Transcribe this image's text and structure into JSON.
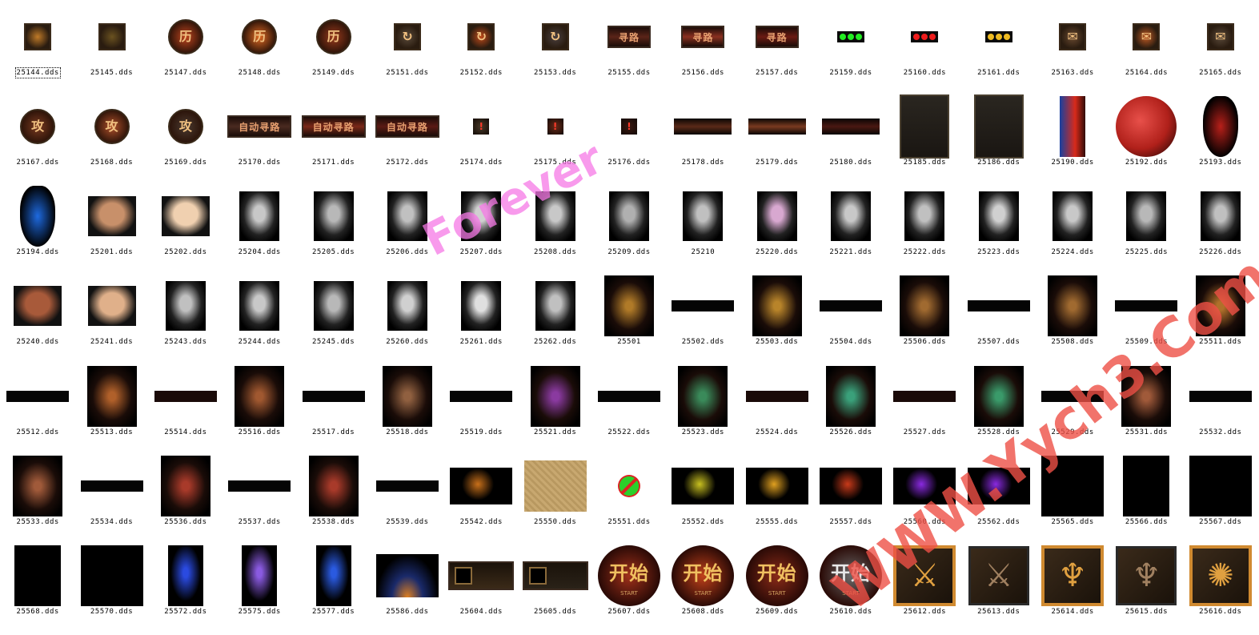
{
  "watermarks": {
    "forever": "Forever",
    "url": "WWW.Yych3.Com"
  },
  "files": [
    {
      "name": "25144.dds",
      "kind": "iconsq",
      "color": "#c07a28",
      "selected": true
    },
    {
      "name": "25145.dds",
      "kind": "iconsq",
      "color": "#6a5220"
    },
    {
      "name": "25147.dds",
      "kind": "iconround",
      "color": "#c0451e",
      "glyph": "历"
    },
    {
      "name": "25148.dds",
      "kind": "iconround",
      "color": "#e06a22",
      "glyph": "历"
    },
    {
      "name": "25149.dds",
      "kind": "iconround",
      "color": "#9a3a1c",
      "glyph": "历"
    },
    {
      "name": "25151.dds",
      "kind": "iconsq",
      "color": "#5a4a3a",
      "glyph": "↻"
    },
    {
      "name": "25152.dds",
      "kind": "iconsq",
      "color": "#c04a1a",
      "glyph": "↻"
    },
    {
      "name": "25153.dds",
      "kind": "iconsq",
      "color": "#4a4040",
      "glyph": "↻"
    },
    {
      "name": "25155.dds",
      "kind": "plate",
      "color": "#5a2418",
      "text": "寻路"
    },
    {
      "name": "25156.dds",
      "kind": "plate",
      "color": "#8a3020",
      "text": "寻路"
    },
    {
      "name": "25157.dds",
      "kind": "plate",
      "color": "#6a1a12",
      "text": "寻路"
    },
    {
      "name": "25159.dds",
      "kind": "dots",
      "color": "#22ee22"
    },
    {
      "name": "25160.dds",
      "kind": "dots",
      "color": "#ee1c1c"
    },
    {
      "name": "25161.dds",
      "kind": "dots",
      "color": "#eebb22"
    },
    {
      "name": "25163.dds",
      "kind": "iconsq",
      "color": "#6a4a30",
      "glyph": "✉"
    },
    {
      "name": "25164.dds",
      "kind": "iconsq",
      "color": "#c05a24",
      "glyph": "✉"
    },
    {
      "name": "25165.dds",
      "kind": "iconsq",
      "color": "#5a4a3a",
      "glyph": "✉"
    },
    {
      "name": "25167.dds",
      "kind": "iconround",
      "color": "#7a3a20",
      "glyph": "攻"
    },
    {
      "name": "25168.dds",
      "kind": "iconround",
      "color": "#b0502a",
      "glyph": "攻"
    },
    {
      "name": "25169.dds",
      "kind": "iconround",
      "color": "#4a3a30",
      "glyph": "攻"
    },
    {
      "name": "25170.dds",
      "kind": "longplate",
      "color": "#4a2a20",
      "text": "自动寻路"
    },
    {
      "name": "25171.dds",
      "kind": "longplate",
      "color": "#7a2818",
      "text": "自动寻路"
    },
    {
      "name": "25172.dds",
      "kind": "longplate",
      "color": "#5a1a14",
      "text": "自动寻路"
    },
    {
      "name": "25174.dds",
      "kind": "small",
      "color": "#4a3a28",
      "glyph": "!"
    },
    {
      "name": "25175.dds",
      "kind": "small",
      "color": "#6a2a18",
      "glyph": "!"
    },
    {
      "name": "25176.dds",
      "kind": "small",
      "color": "#3a1810",
      "glyph": "!"
    },
    {
      "name": "25178.dds",
      "kind": "bar",
      "color": "#5a2a18"
    },
    {
      "name": "25179.dds",
      "kind": "bar",
      "color": "#7a3a20"
    },
    {
      "name": "25180.dds",
      "kind": "bar",
      "color": "#4a1812"
    },
    {
      "name": "25185.dds",
      "kind": "panel",
      "color": "#1a1612"
    },
    {
      "name": "25186.dds",
      "kind": "panel2",
      "color": "#1a1612"
    },
    {
      "name": "25190.dds",
      "kind": "orbtall",
      "color": "#d82a1a"
    },
    {
      "name": "25192.dds",
      "kind": "orb",
      "color": "#b0201a"
    },
    {
      "name": "25193.dds",
      "kind": "flame",
      "color": "#b8201a"
    },
    {
      "name": "25194.dds",
      "kind": "flame",
      "color": "#1e6ae0"
    },
    {
      "name": "25201.dds",
      "kind": "face",
      "color": "#c8906a"
    },
    {
      "name": "25202.dds",
      "kind": "face",
      "color": "#f0d0b0"
    },
    {
      "name": "25204.dds",
      "kind": "hair",
      "color": "#c8c8c8"
    },
    {
      "name": "25205.dds",
      "kind": "hair",
      "color": "#b8b8b8"
    },
    {
      "name": "25206.dds",
      "kind": "hair",
      "color": "#c0c0c0"
    },
    {
      "name": "25207.dds",
      "kind": "hair",
      "color": "#d0d0d0"
    },
    {
      "name": "25208.dds",
      "kind": "hair",
      "color": "#c8c8c8"
    },
    {
      "name": "25209.dds",
      "kind": "hair",
      "color": "#b0b0b0"
    },
    {
      "name": "25210",
      "kind": "hair",
      "color": "#c0c0c0"
    },
    {
      "name": "25220.dds",
      "kind": "hair",
      "color": "#d8a8d0"
    },
    {
      "name": "25221.dds",
      "kind": "hair",
      "color": "#c8c8c8"
    },
    {
      "name": "25222.dds",
      "kind": "hair",
      "color": "#c0c0c0"
    },
    {
      "name": "25223.dds",
      "kind": "hair",
      "color": "#d0d0d0"
    },
    {
      "name": "25224.dds",
      "kind": "hair",
      "color": "#c8c8c8"
    },
    {
      "name": "25225.dds",
      "kind": "hair",
      "color": "#b8b8b8"
    },
    {
      "name": "25226.dds",
      "kind": "hair",
      "color": "#c0c0c0"
    },
    {
      "name": "25240.dds",
      "kind": "face",
      "color": "#a85a3a"
    },
    {
      "name": "25241.dds",
      "kind": "face",
      "color": "#e0b08a"
    },
    {
      "name": "25243.dds",
      "kind": "hair",
      "color": "#c0c0c0"
    },
    {
      "name": "25244.dds",
      "kind": "hair",
      "color": "#c8c8c8"
    },
    {
      "name": "25245.dds",
      "kind": "hair",
      "color": "#b8b8b8"
    },
    {
      "name": "25260.dds",
      "kind": "hair",
      "color": "#d0d0d0"
    },
    {
      "name": "25261.dds",
      "kind": "hair",
      "color": "#e0e0e0"
    },
    {
      "name": "25262.dds",
      "kind": "hair",
      "color": "#c0c0c0"
    },
    {
      "name": "25501",
      "kind": "warrior",
      "color": "#b07a28"
    },
    {
      "name": "25502.dds",
      "kind": "strip",
      "color": "#050505"
    },
    {
      "name": "25503.dds",
      "kind": "warrior",
      "color": "#b8842a"
    },
    {
      "name": "25504.dds",
      "kind": "strip",
      "color": "#050505"
    },
    {
      "name": "25506.dds",
      "kind": "warrior",
      "color": "#a06a30"
    },
    {
      "name": "25507.dds",
      "kind": "strip",
      "color": "#050505"
    },
    {
      "name": "25508.dds",
      "kind": "warrior",
      "color": "#a06a30"
    },
    {
      "name": "25509.dds",
      "kind": "strip",
      "color": "#050505"
    },
    {
      "name": "25511.dds",
      "kind": "warrior",
      "color": "#b0702a"
    },
    {
      "name": "25512.dds",
      "kind": "strip",
      "color": "#050505"
    },
    {
      "name": "25513.dds",
      "kind": "warrior",
      "color": "#b0602a"
    },
    {
      "name": "25514.dds",
      "kind": "strip",
      "color": "#1a0a08"
    },
    {
      "name": "25516.dds",
      "kind": "warrior",
      "color": "#a05830"
    },
    {
      "name": "25517.dds",
      "kind": "strip",
      "color": "#050505"
    },
    {
      "name": "25518.dds",
      "kind": "warrior",
      "color": "#906040"
    },
    {
      "name": "25519.dds",
      "kind": "strip",
      "color": "#050505"
    },
    {
      "name": "25521.dds",
      "kind": "warrior",
      "color": "#8a3aa0"
    },
    {
      "name": "25522.dds",
      "kind": "strip",
      "color": "#050505"
    },
    {
      "name": "25523.dds",
      "kind": "warrior",
      "color": "#3a8a5a"
    },
    {
      "name": "25524.dds",
      "kind": "strip",
      "color": "#1a0a08"
    },
    {
      "name": "25526.dds",
      "kind": "warrior",
      "color": "#3aa07a"
    },
    {
      "name": "25527.dds",
      "kind": "strip",
      "color": "#1a0a08"
    },
    {
      "name": "25528.dds",
      "kind": "warrior",
      "color": "#3a9a6a"
    },
    {
      "name": "25529.dds",
      "kind": "strip",
      "color": "#050505"
    },
    {
      "name": "25531.dds",
      "kind": "warrior",
      "color": "#a05a3a"
    },
    {
      "name": "25532.dds",
      "kind": "strip",
      "color": "#050505"
    },
    {
      "name": "25533.dds",
      "kind": "warrior",
      "color": "#a05a3a"
    },
    {
      "name": "25534.dds",
      "kind": "strip",
      "color": "#050505"
    },
    {
      "name": "25536.dds",
      "kind": "warrior",
      "color": "#a83a2a"
    },
    {
      "name": "25537.dds",
      "kind": "strip",
      "color": "#050505"
    },
    {
      "name": "25538.dds",
      "kind": "warrior",
      "color": "#a83a2a"
    },
    {
      "name": "25539.dds",
      "kind": "strip",
      "color": "#050505"
    },
    {
      "name": "25542.dds",
      "kind": "fx",
      "color": "#c8701a"
    },
    {
      "name": "25550.dds",
      "kind": "parchment",
      "color": "#c8a870"
    },
    {
      "name": "25551.dds",
      "kind": "noentry",
      "color": "#2ad02a"
    },
    {
      "name": "25552.dds",
      "kind": "fx",
      "color": "#c8c020"
    },
    {
      "name": "25555.dds",
      "kind": "fx",
      "color": "#e0a020"
    },
    {
      "name": "25557.dds",
      "kind": "fx",
      "color": "#c83a1a"
    },
    {
      "name": "25560.dds",
      "kind": "fx",
      "color": "#8a2ae0"
    },
    {
      "name": "25562.dds",
      "kind": "fx",
      "color": "#8a2ae0"
    },
    {
      "name": "25565.dds",
      "kind": "blacksq",
      "color": "#000000"
    },
    {
      "name": "25566.dds",
      "kind": "blacktall",
      "color": "#000000"
    },
    {
      "name": "25567.dds",
      "kind": "blacksq",
      "color": "#000000"
    },
    {
      "name": "25568.dds",
      "kind": "blacktall",
      "color": "#000000"
    },
    {
      "name": "25570.dds",
      "kind": "blacksq",
      "color": "#000000"
    },
    {
      "name": "25572.dds",
      "kind": "bluefx",
      "color": "#2a4ae0"
    },
    {
      "name": "25575.dds",
      "kind": "bluefx",
      "color": "#8a5ae0"
    },
    {
      "name": "25577.dds",
      "kind": "bluefx",
      "color": "#2a5ae0"
    },
    {
      "name": "25586.dds",
      "kind": "glow",
      "color": "#e08020"
    },
    {
      "name": "25604.dds",
      "kind": "slotbar",
      "color": "#3a2a18"
    },
    {
      "name": "25605.dds",
      "kind": "slotbar",
      "color": "#2a2218"
    },
    {
      "name": "25607.dds",
      "kind": "start",
      "color": "#a0301a",
      "text": "开始",
      "sub": "START"
    },
    {
      "name": "25608.dds",
      "kind": "start",
      "color": "#c0401a",
      "text": "开始",
      "sub": "START"
    },
    {
      "name": "25609.dds",
      "kind": "start",
      "color": "#8a2a18",
      "text": "开始",
      "sub": "START"
    },
    {
      "name": "25610.dds",
      "kind": "start",
      "color": "#6a6a6a",
      "text": "开始",
      "sub": "START"
    },
    {
      "name": "25612.dds",
      "kind": "weapon",
      "color": "#e0a040",
      "glyph": "⚔"
    },
    {
      "name": "25613.dds",
      "kind": "weapon",
      "color": "#a08060",
      "glyph": "⚔"
    },
    {
      "name": "25614.dds",
      "kind": "weapon",
      "color": "#e0a040",
      "glyph": "♆"
    },
    {
      "name": "25615.dds",
      "kind": "weapon",
      "color": "#a08060",
      "glyph": "♆"
    },
    {
      "name": "25616.dds",
      "kind": "weapon",
      "color": "#e0a040",
      "glyph": "✺"
    }
  ]
}
